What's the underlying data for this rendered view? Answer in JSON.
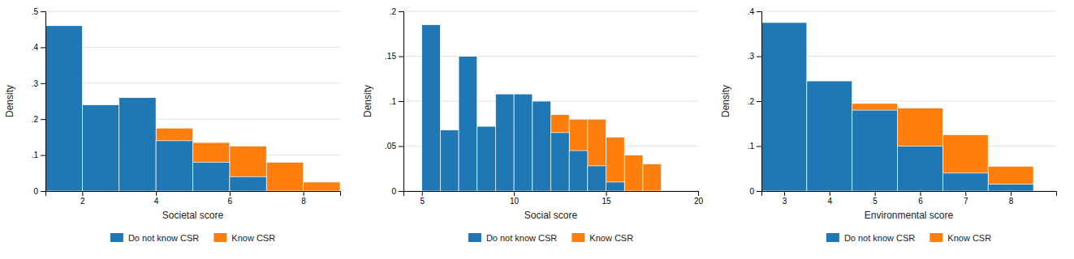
{
  "chart_data": [
    {
      "type": "histogram",
      "xlabel": "Societal score",
      "ylabel": "Density",
      "xlim": [
        1,
        9
      ],
      "ylim": [
        0,
        0.5
      ],
      "xticks": [
        2,
        4,
        6,
        8
      ],
      "yticks": [
        0,
        {
          "value": 0.1,
          "label": ".1"
        },
        {
          "value": 0.2,
          "label": ".2"
        },
        {
          "value": 0.3,
          "label": ".3"
        },
        {
          "value": 0.4,
          "label": ".4"
        },
        {
          "value": 0.5,
          "label": ".5"
        }
      ],
      "grid": true,
      "legend": "bottom",
      "series": [
        {
          "name": "Do not know CSR",
          "bins": [
            1,
            2,
            3,
            4,
            5,
            6,
            7
          ],
          "values": [
            0.46,
            0.24,
            0.26,
            0.14,
            0.08,
            0.04
          ]
        },
        {
          "name": "Know CSR",
          "bins": [
            4,
            5,
            6,
            7,
            8,
            9
          ],
          "values": [
            0.175,
            0.135,
            0.125,
            0.08,
            0.025
          ]
        }
      ]
    },
    {
      "type": "histogram",
      "xlabel": "Social score",
      "ylabel": "Density",
      "xlim": [
        4,
        20
      ],
      "ylim": [
        0,
        0.2
      ],
      "xticks": [
        5,
        10,
        15,
        20
      ],
      "yticks": [
        0,
        {
          "value": 0.05,
          "label": ".05"
        },
        {
          "value": 0.1,
          "label": ".1"
        },
        {
          "value": 0.15,
          "label": ".15"
        },
        {
          "value": 0.2,
          "label": ".2"
        }
      ],
      "grid": true,
      "legend": "bottom",
      "series": [
        {
          "name": "Do not know CSR",
          "bins": [
            5,
            6,
            7,
            8,
            9,
            10,
            11,
            12,
            13,
            14,
            15,
            16
          ],
          "values": [
            0.185,
            0.068,
            0.15,
            0.072,
            0.108,
            0.108,
            0.1,
            0.065,
            0.045,
            0.028,
            0.01
          ]
        },
        {
          "name": "Know CSR",
          "bins": [
            11,
            12,
            13,
            14,
            15,
            16,
            17,
            18
          ],
          "values": [
            0.085,
            0.085,
            0.08,
            0.08,
            0.06,
            0.04,
            0.03
          ]
        }
      ]
    },
    {
      "type": "histogram",
      "xlabel": "Environmental score",
      "ylabel": "Density",
      "xlim": [
        2.5,
        9
      ],
      "ylim": [
        0,
        0.4
      ],
      "xticks": [
        3,
        4,
        5,
        6,
        7,
        8
      ],
      "yticks": [
        0,
        {
          "value": 0.1,
          "label": ".1"
        },
        {
          "value": 0.2,
          "label": ".2"
        },
        {
          "value": 0.3,
          "label": ".3"
        },
        {
          "value": 0.4,
          "label": ".4"
        }
      ],
      "grid": true,
      "legend": "bottom",
      "series": [
        {
          "name": "Do not know CSR",
          "bins": [
            2.5,
            3.5,
            4.5,
            5.5,
            6.5,
            7.5,
            8.5
          ],
          "values": [
            0.375,
            0.245,
            0.18,
            0.1,
            0.04,
            0.015
          ]
        },
        {
          "name": "Know CSR",
          "bins": [
            4.5,
            5.5,
            6.5,
            7.5,
            8.5
          ],
          "values": [
            0.195,
            0.185,
            0.125,
            0.055
          ]
        }
      ]
    }
  ]
}
